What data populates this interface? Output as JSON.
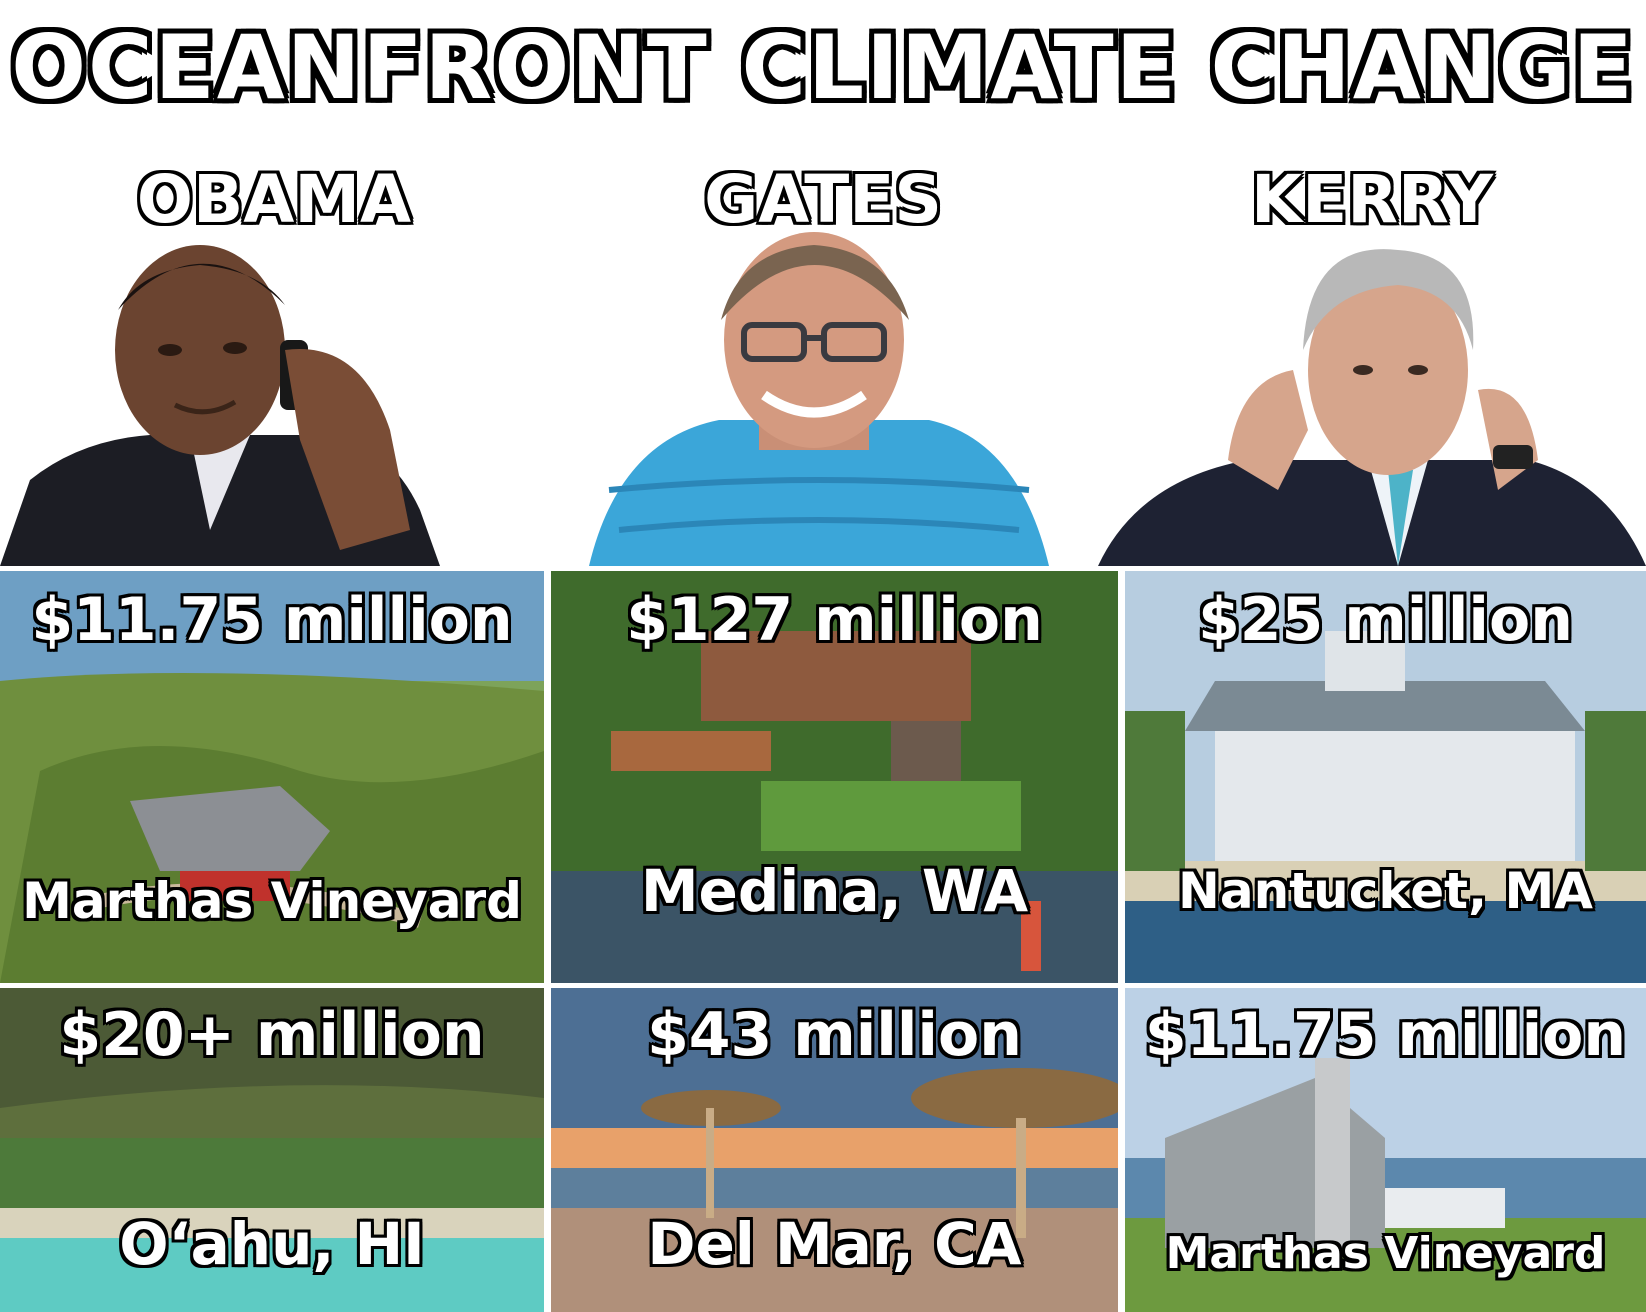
{
  "title": "OCEANFRONT CLIMATE CHANGE",
  "people": [
    {
      "name": "OBAMA"
    },
    {
      "name": "GATES"
    },
    {
      "name": "KERRY"
    }
  ],
  "homes_row1": [
    {
      "price": "$11.75 million",
      "place": "Marthas Vineyard"
    },
    {
      "price": "$127 million",
      "place": "Medina, WA"
    },
    {
      "price": "$25 million",
      "place": "Nantucket, MA"
    }
  ],
  "homes_row2": [
    {
      "price": "$20+ million",
      "place": "O‘ahu, HI"
    },
    {
      "price": "$43 million",
      "place": "Del Mar, CA"
    },
    {
      "price": "$11.75 million",
      "place": "Marthas Vineyard"
    }
  ]
}
